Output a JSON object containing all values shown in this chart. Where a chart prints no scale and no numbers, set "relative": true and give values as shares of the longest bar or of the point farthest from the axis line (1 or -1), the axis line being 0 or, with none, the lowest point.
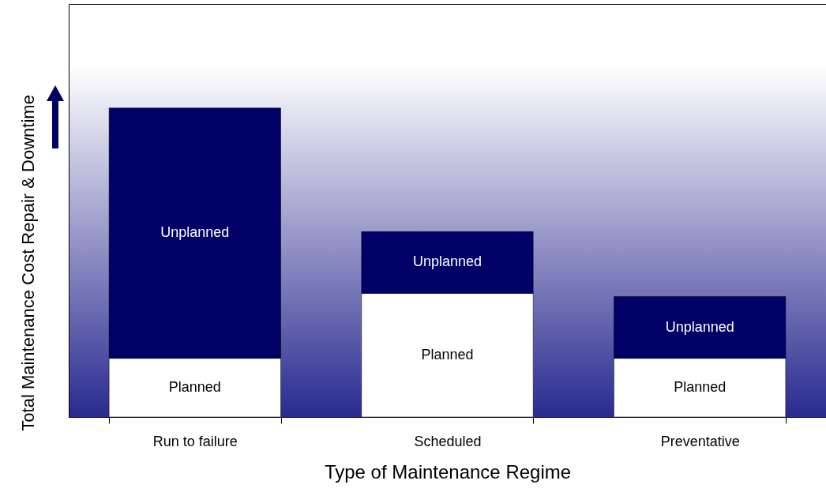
{
  "chart_data": {
    "type": "bar",
    "stacked": true,
    "relative": true,
    "xlabel": "Type of Maintenance Regime",
    "ylabel": "Total Maintenance Cost Repair & Downtime",
    "categories": [
      "Run to failure",
      "Scheduled",
      "Preventative"
    ],
    "series": [
      {
        "name": "Planned",
        "color": "#ffffff",
        "values": [
          0.19,
          0.4,
          0.19
        ]
      },
      {
        "name": "Unplanned",
        "color": "#000066",
        "values": [
          0.81,
          0.2,
          0.2
        ]
      }
    ],
    "grid": false
  }
}
